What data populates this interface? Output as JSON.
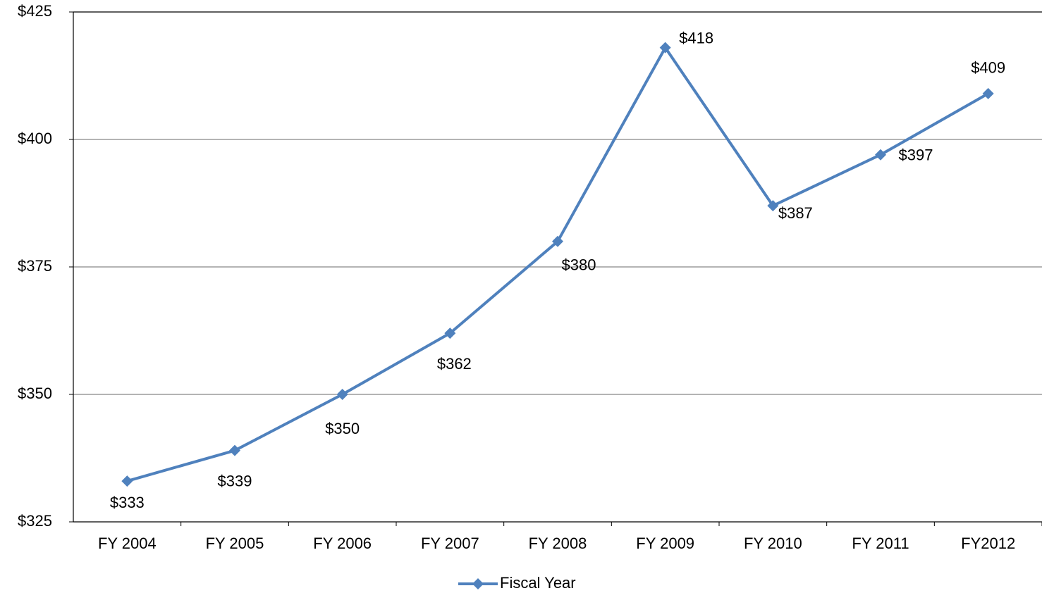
{
  "chart_data": {
    "type": "line",
    "categories": [
      "FY 2004",
      "FY 2005",
      "FY 2006",
      "FY 2007",
      "FY 2008",
      "FY 2009",
      "FY 2010",
      "FY 2011",
      "FY2012"
    ],
    "series": [
      {
        "name": "Fiscal Year",
        "color": "#4f81bd",
        "values": [
          333,
          339,
          350,
          362,
          380,
          418,
          387,
          397,
          409
        ],
        "value_labels": [
          "$333",
          "$339",
          "$350",
          "$362",
          "$380",
          "$418",
          "$387",
          "$397",
          "$409"
        ]
      }
    ],
    "ylim": [
      325,
      425
    ],
    "yticks": [
      {
        "value": 325,
        "label": "$325"
      },
      {
        "value": 350,
        "label": "$350"
      },
      {
        "value": 375,
        "label": "$375"
      },
      {
        "value": 400,
        "label": "$400"
      },
      {
        "value": 425,
        "label": "$425"
      }
    ],
    "grid": true,
    "legend": "bottom"
  }
}
